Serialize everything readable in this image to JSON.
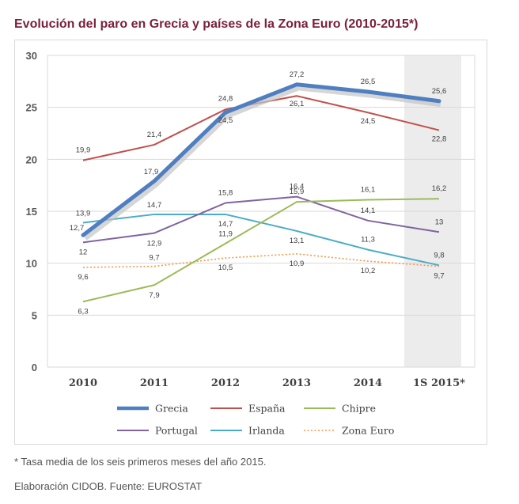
{
  "header": {
    "title": "Evolución del paro en Grecia y países de la Zona Euro (2010-2015*)"
  },
  "footer": {
    "note": "* Tasa media de los seis primeros meses del año 2015.",
    "source": "Elaboración CIDOB. Fuente: EUROSTAT"
  },
  "chart_data": {
    "type": "line",
    "title": "Evolución del paro en Grecia y países de la Zona Euro (2010-2015*)",
    "xlabel": "",
    "ylabel": "",
    "categories": [
      "2010",
      "2011",
      "2012",
      "2013",
      "2014",
      "1S 2015*"
    ],
    "ylim": [
      0,
      30
    ],
    "yticks": [
      "0",
      "5",
      "10",
      "15",
      "20",
      "25",
      "30"
    ],
    "grid": true,
    "highlighted_category": "1S 2015*",
    "legend_position": "bottom",
    "series": [
      {
        "name": "Grecia",
        "color": "#4f7fc0",
        "style": "thick",
        "values": [
          12.7,
          17.9,
          24.5,
          27.2,
          26.5,
          25.6
        ],
        "labels": [
          "12,7",
          "17,9",
          "24,5",
          "27,2",
          "26,5",
          "25,6"
        ]
      },
      {
        "name": "España",
        "color": "#c0504d",
        "style": "solid",
        "values": [
          19.9,
          21.4,
          24.8,
          26.1,
          24.5,
          22.8
        ],
        "labels": [
          "19,9",
          "21,4",
          "24,8",
          "26,1",
          "24,5",
          "22,8"
        ]
      },
      {
        "name": "Chipre",
        "color": "#9bbb59",
        "style": "solid",
        "values": [
          6.3,
          7.9,
          11.9,
          15.9,
          16.1,
          16.2
        ],
        "labels": [
          "6,3",
          "7,9",
          "11,9",
          "15,9",
          "16,1",
          "16,2"
        ]
      },
      {
        "name": "Portugal",
        "color": "#8064a2",
        "style": "solid",
        "values": [
          12,
          12.9,
          15.8,
          16.4,
          14.1,
          13
        ],
        "labels": [
          "12",
          "12,9",
          "15,8",
          "16,4",
          "14,1",
          "13"
        ]
      },
      {
        "name": "Irlanda",
        "color": "#4bacc6",
        "style": "solid",
        "values": [
          13.9,
          14.7,
          14.7,
          13.1,
          11.3,
          9.8
        ],
        "labels": [
          "13,9",
          "14,7",
          "14,7",
          "13,1",
          "11,3",
          "9,8"
        ]
      },
      {
        "name": "Zona Euro",
        "color": "#f79646",
        "style": "dotted",
        "values": [
          9.6,
          9.7,
          10.5,
          10.9,
          10.2,
          9.7
        ],
        "labels": [
          "9,6",
          "9,7",
          "10,5",
          "10,9",
          "10,2",
          "9,7"
        ]
      }
    ]
  }
}
